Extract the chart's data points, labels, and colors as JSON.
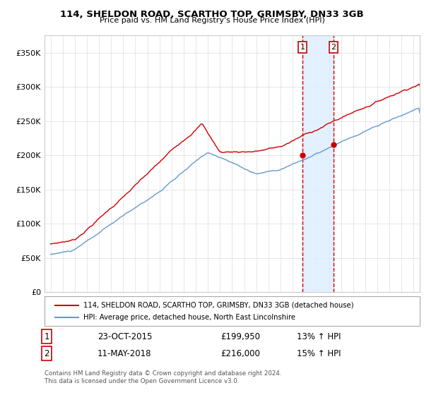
{
  "title": "114, SHELDON ROAD, SCARTHO TOP, GRIMSBY, DN33 3GB",
  "subtitle": "Price paid vs. HM Land Registry's House Price Index (HPI)",
  "ylabel_ticks": [
    "£0",
    "£50K",
    "£100K",
    "£150K",
    "£200K",
    "£250K",
    "£300K",
    "£350K"
  ],
  "ytick_vals": [
    0,
    50000,
    100000,
    150000,
    200000,
    250000,
    300000,
    350000
  ],
  "ylim": [
    0,
    375000
  ],
  "sale1_date": "23-OCT-2015",
  "sale1_price": "£199,950",
  "sale1_hpi": "13% ↑ HPI",
  "sale1_x": 2015.8,
  "sale1_y": 199950,
  "sale2_date": "11-MAY-2018",
  "sale2_price": "£216,000",
  "sale2_hpi": "15% ↑ HPI",
  "sale2_x": 2018.37,
  "sale2_y": 216000,
  "red_line_label": "114, SHELDON ROAD, SCARTHO TOP, GRIMSBY, DN33 3GB (detached house)",
  "blue_line_label": "HPI: Average price, detached house, North East Lincolnshire",
  "footer": "Contains HM Land Registry data © Crown copyright and database right 2024.\nThis data is licensed under the Open Government Licence v3.0.",
  "red_color": "#cc0000",
  "blue_color": "#6699cc",
  "shade_color": "#ddeeff",
  "xmin": 1994.5,
  "xmax": 2025.5
}
